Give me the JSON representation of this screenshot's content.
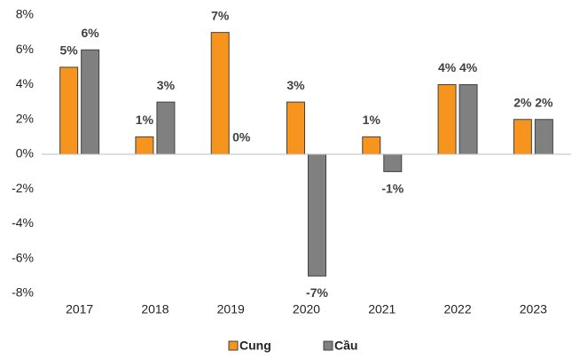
{
  "chart_data": {
    "type": "bar",
    "categories": [
      "2017",
      "2018",
      "2019",
      "2020",
      "2021",
      "2022",
      "2023"
    ],
    "series": [
      {
        "name": "Cung",
        "color": "#f7941d",
        "values": [
          5,
          1,
          7,
          3,
          1,
          4,
          2
        ],
        "value_labels": [
          "5%",
          "1%",
          "7%",
          "3%",
          "1%",
          "4%",
          "2%"
        ]
      },
      {
        "name": "Cầu",
        "color": "#808080",
        "values": [
          6,
          3,
          0,
          -7,
          -1,
          4,
          2
        ],
        "value_labels": [
          "6%",
          "3%",
          "0%",
          "-7%",
          "-1%",
          "4%",
          "2%"
        ]
      }
    ],
    "ylim": [
      -8,
      8
    ],
    "yticks": [
      {
        "value": -8,
        "label": "-8%"
      },
      {
        "value": -6,
        "label": "-6%"
      },
      {
        "value": -4,
        "label": "-4%"
      },
      {
        "value": -2,
        "label": "-2%"
      },
      {
        "value": 0,
        "label": "0%"
      },
      {
        "value": 2,
        "label": "2%"
      },
      {
        "value": 4,
        "label": "4%"
      },
      {
        "value": 6,
        "label": "6%"
      },
      {
        "value": 8,
        "label": "8%"
      }
    ],
    "grid": false,
    "legend": "bottom"
  }
}
